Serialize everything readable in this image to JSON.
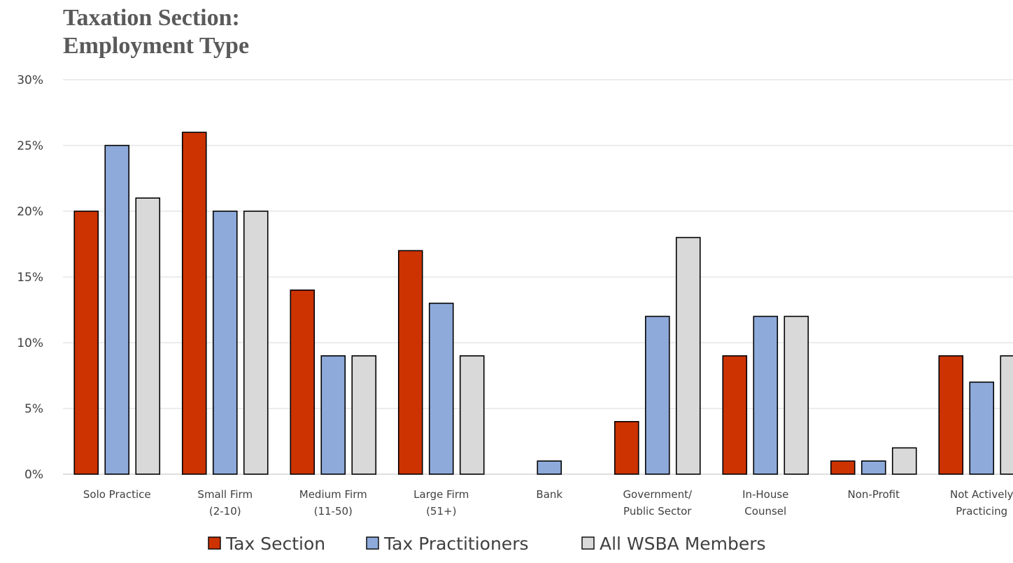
{
  "chart_data": {
    "type": "bar",
    "title_lines": [
      "Taxation Section:",
      "Employment Type"
    ],
    "categories": [
      [
        "Solo Practice"
      ],
      [
        "Small Firm",
        "(2-10)"
      ],
      [
        "Medium Firm",
        "(11-50)"
      ],
      [
        "Large Firm",
        "(51+)"
      ],
      [
        "Bank"
      ],
      [
        "Government/",
        "Public Sector"
      ],
      [
        "In-House",
        "Counsel"
      ],
      [
        "Non-Profit"
      ],
      [
        "Not Actively",
        "Practicing"
      ]
    ],
    "series": [
      {
        "name": "Tax Section",
        "color": "#cc3300",
        "values": [
          20,
          26,
          14,
          17,
          0,
          4,
          9,
          1,
          9
        ]
      },
      {
        "name": "Tax Practitioners",
        "color": "#8eaadb",
        "values": [
          25,
          20,
          9,
          13,
          1,
          12,
          12,
          1,
          7
        ]
      },
      {
        "name": "All WSBA Members",
        "color": "#d9d9d9",
        "values": [
          21,
          20,
          9,
          9,
          0,
          18,
          12,
          2,
          9
        ]
      }
    ],
    "ylim": [
      0,
      30
    ],
    "yticks": [
      0,
      5,
      10,
      15,
      20,
      25,
      30
    ],
    "ytick_labels": [
      "0%",
      "5%",
      "10%",
      "15%",
      "20%",
      "25%",
      "30%"
    ],
    "grid": true,
    "legend_position": "bottom"
  }
}
